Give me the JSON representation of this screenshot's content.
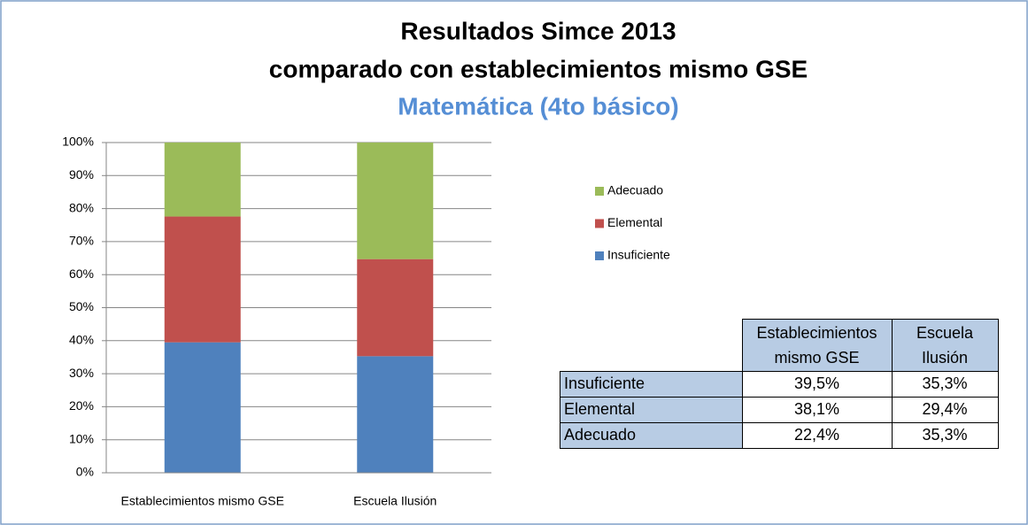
{
  "chart_data": {
    "type": "stacked-bar",
    "title_lines": [
      "Resultados Simce 2013",
      "comparado con establecimientos mismo GSE"
    ],
    "subtitle": "Matemática (4to básico)",
    "categories": [
      "Establecimientos mismo GSE",
      "Escuela Ilusión"
    ],
    "series": [
      {
        "name": "Insuficiente",
        "color": "#4f81bd",
        "values": [
          39.5,
          35.3
        ]
      },
      {
        "name": "Elemental",
        "color": "#c0504d",
        "values": [
          38.1,
          29.4
        ]
      },
      {
        "name": "Adecuado",
        "color": "#9bbb59",
        "values": [
          22.4,
          35.3
        ]
      }
    ],
    "ylim": [
      0,
      100
    ],
    "yticks": [
      {
        "value": 0,
        "label": "0%"
      },
      {
        "value": 10,
        "label": "10%"
      },
      {
        "value": 20,
        "label": "20%"
      },
      {
        "value": 30,
        "label": "30%"
      },
      {
        "value": 40,
        "label": "40%"
      },
      {
        "value": 50,
        "label": "50%"
      },
      {
        "value": 60,
        "label": "60%"
      },
      {
        "value": 70,
        "label": "70%"
      },
      {
        "value": 80,
        "label": "80%"
      },
      {
        "value": 90,
        "label": "90%"
      },
      {
        "value": 100,
        "label": "100%"
      }
    ],
    "grid": true
  },
  "table": {
    "header": [
      "Establecimientos mismo GSE",
      "Escuela Ilusión"
    ],
    "rows": [
      [
        "Insuficiente",
        "39,5%",
        "35,3%"
      ],
      [
        "Elemental",
        "38,1%",
        "29,4%"
      ],
      [
        "Adecuado",
        "22,4%",
        "35,3%"
      ]
    ]
  }
}
